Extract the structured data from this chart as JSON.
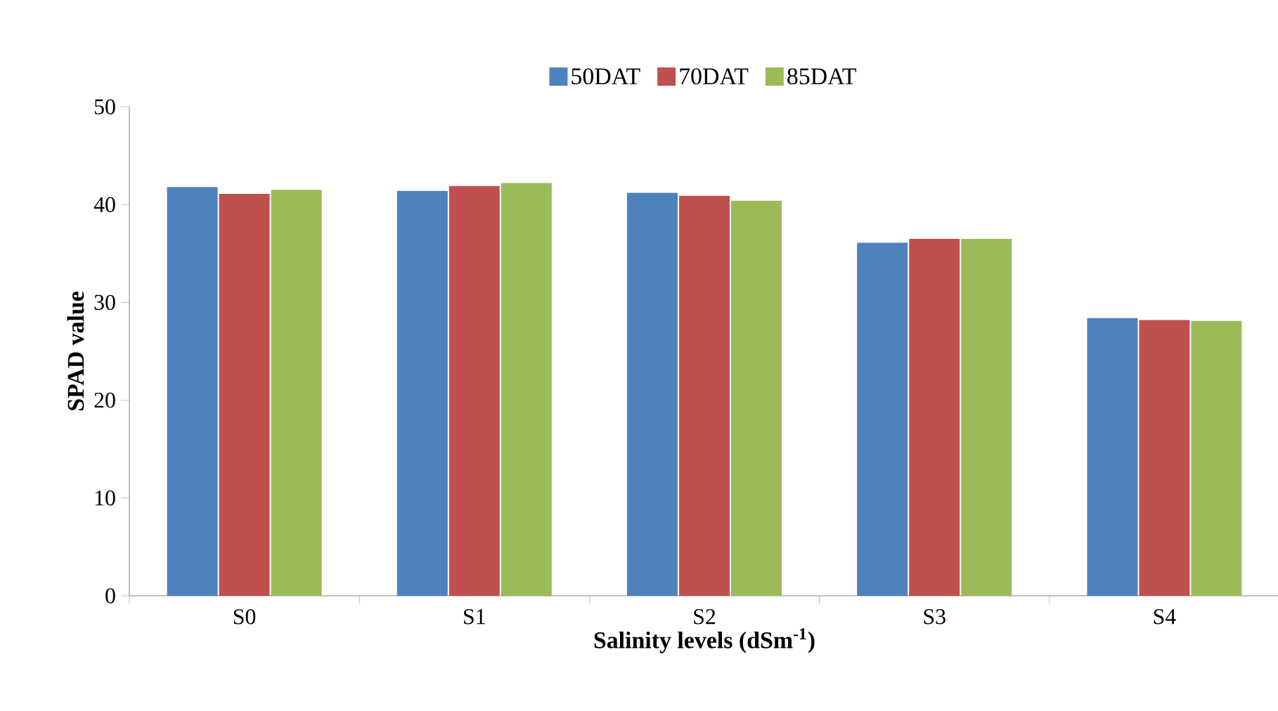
{
  "chart_data": {
    "type": "bar",
    "xlabel": "Salinity levels (dSm$^{-1}$)",
    "ylabel": "SPAD value",
    "categories": [
      "S0",
      "S1",
      "S2",
      "S3",
      "S4"
    ],
    "series": [
      {
        "name": "50DAT",
        "color": "#4f81bd",
        "values": [
          41.8,
          41.4,
          41.2,
          36.1,
          28.4
        ]
      },
      {
        "name": "70DAT",
        "color": "#c0504d",
        "values": [
          41.1,
          41.9,
          40.9,
          36.5,
          28.2
        ]
      },
      {
        "name": "85DAT",
        "color": "#9bbb59",
        "values": [
          41.5,
          42.2,
          40.4,
          36.5,
          28.1
        ]
      }
    ],
    "ylim": [
      0,
      50
    ],
    "yticks": [
      0,
      10,
      20,
      30,
      40,
      50
    ],
    "grid": false,
    "legend": "top"
  }
}
